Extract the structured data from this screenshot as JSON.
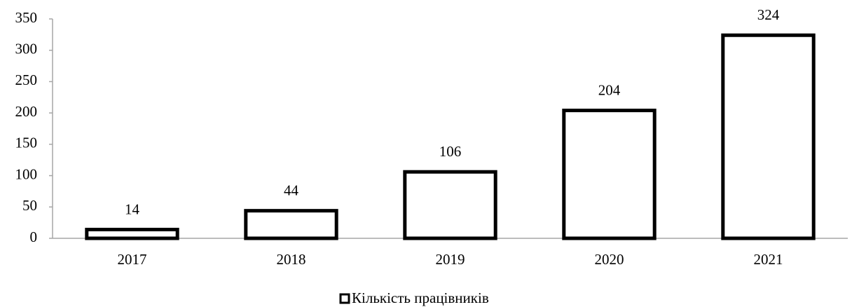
{
  "chart_data": {
    "type": "bar",
    "categories": [
      "2017",
      "2018",
      "2019",
      "2020",
      "2021"
    ],
    "series": [
      {
        "name": "Кількість працівників",
        "color": "#ffffff",
        "edgecolor": "#000000",
        "values": [
          14,
          44,
          106,
          204,
          324
        ]
      }
    ],
    "ylim": [
      0,
      350
    ],
    "yticks": [
      0,
      50,
      100,
      150,
      200,
      250,
      300,
      350
    ],
    "grid": false,
    "legend": "bottom"
  }
}
